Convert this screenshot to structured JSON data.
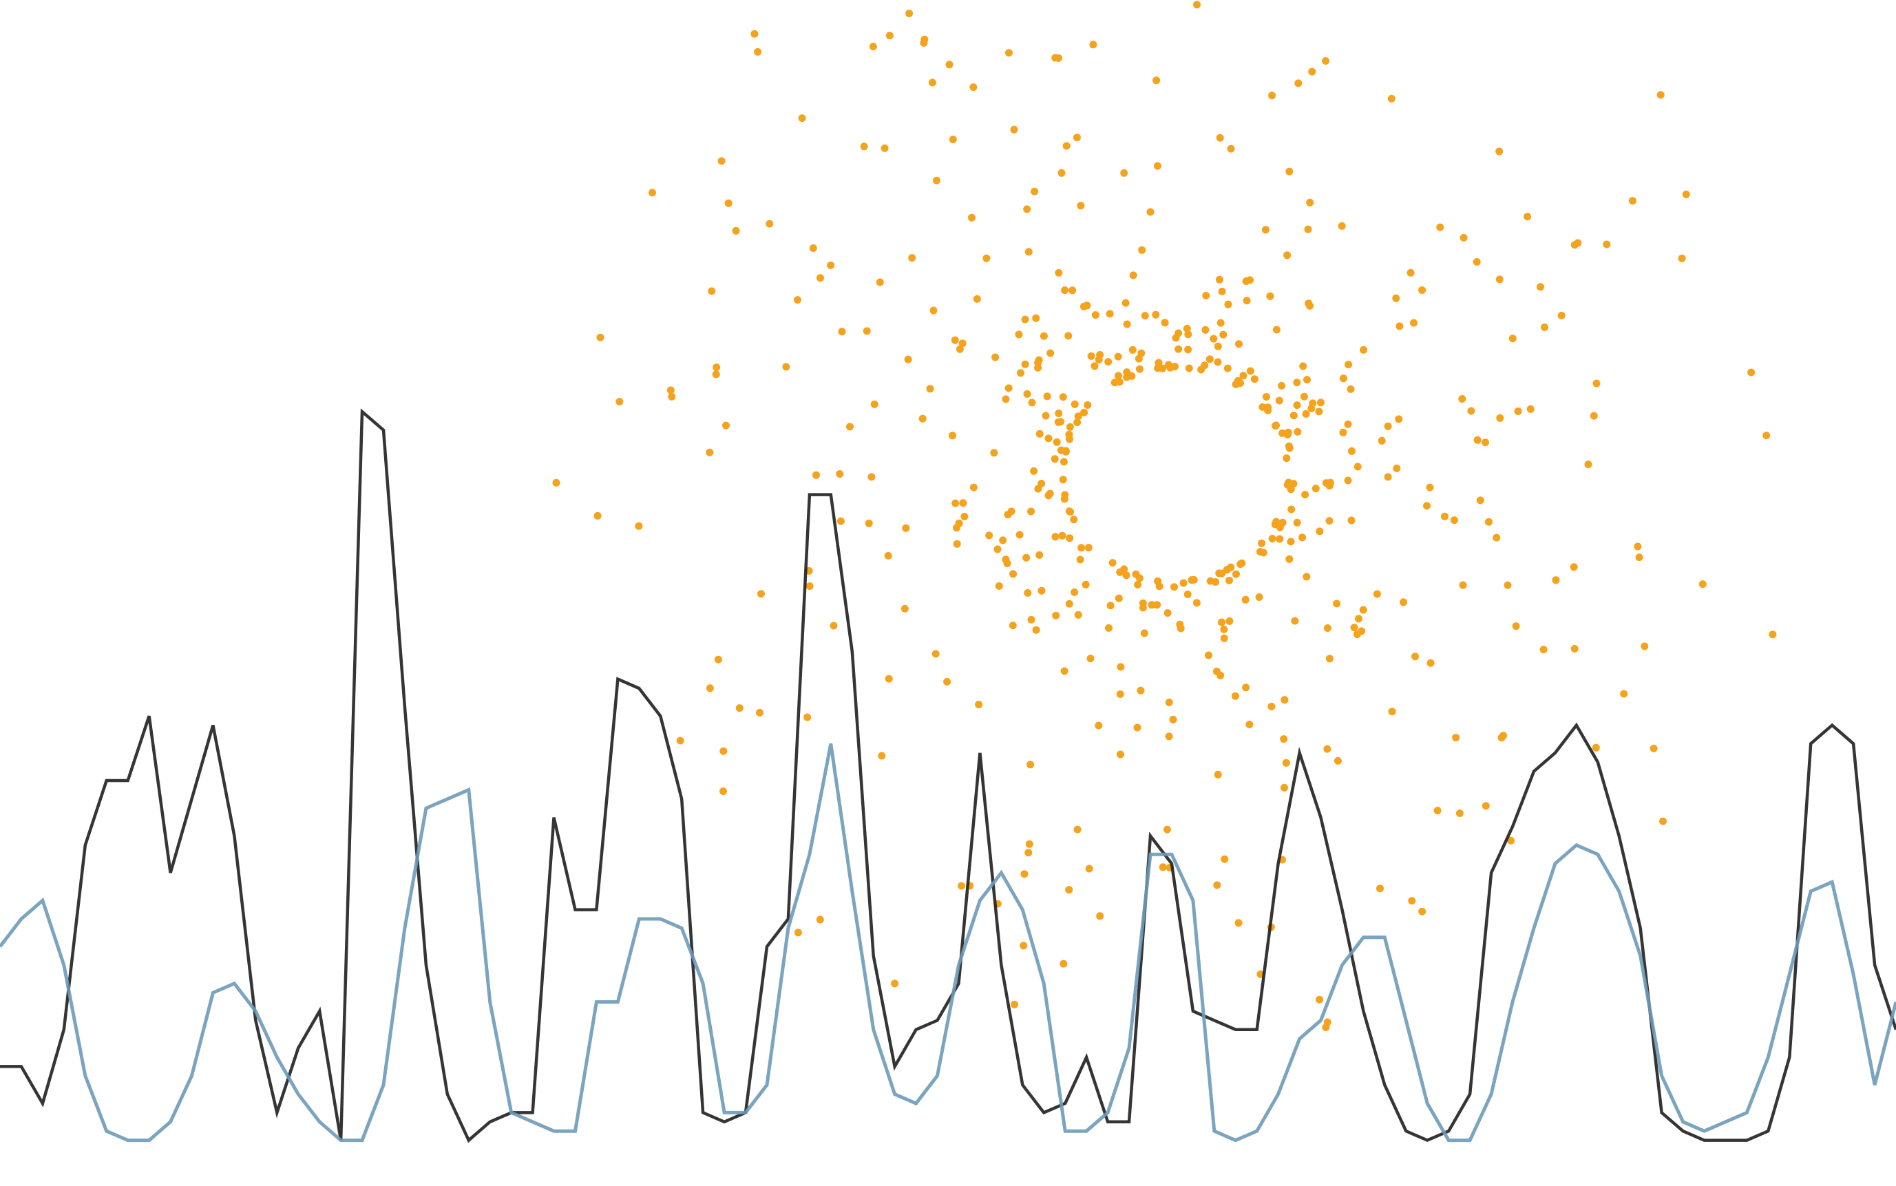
{
  "chart_data": {
    "type": "line",
    "grid": false,
    "legend": "none",
    "axes_visible": false,
    "x": [
      0,
      1,
      2,
      3,
      4,
      5,
      6,
      7,
      8,
      9,
      10,
      11,
      12,
      13,
      14,
      15,
      16,
      17,
      18,
      19,
      20,
      21,
      22,
      23,
      24,
      25,
      26,
      27,
      28,
      29,
      30,
      31,
      32,
      33,
      34,
      35,
      36,
      37,
      38,
      39,
      40,
      41,
      42,
      43,
      44,
      45,
      46,
      47,
      48,
      49,
      50,
      51,
      52,
      53,
      54,
      55,
      56,
      57,
      58,
      59,
      60,
      61,
      62,
      63,
      64,
      65,
      66,
      67,
      68,
      69,
      70,
      71,
      72,
      73,
      74,
      75,
      76,
      77,
      78,
      79,
      80,
      81,
      82,
      83,
      84,
      85,
      86,
      87,
      88,
      89
    ],
    "xlim": [
      0,
      89
    ],
    "ylim": [
      0,
      100
    ],
    "series": [
      {
        "color": "#1f1f1f",
        "values": [
          9,
          9,
          5,
          13,
          33,
          40,
          40,
          47,
          30,
          38,
          46,
          34,
          14,
          4,
          11,
          15,
          1,
          80,
          78,
          48,
          20,
          6,
          1,
          3,
          4,
          4,
          36,
          26,
          26,
          51,
          50,
          47,
          38,
          4,
          3,
          4,
          22,
          25,
          71,
          71,
          54,
          21,
          9,
          13,
          14,
          18,
          43,
          20,
          7,
          4,
          5,
          10,
          3,
          3,
          34,
          31,
          15,
          14,
          13,
          13,
          31,
          43,
          36,
          26,
          15,
          7,
          2,
          1,
          2,
          6,
          30,
          35,
          41,
          43,
          46,
          42,
          34,
          24,
          4,
          2,
          1,
          1,
          1,
          2,
          10,
          44,
          46,
          44,
          20,
          13
        ]
      },
      {
        "color": "#6b9ab8",
        "values": [
          22,
          25,
          27,
          20,
          8,
          2,
          1,
          1,
          3,
          8,
          17,
          18,
          15,
          10,
          6,
          3,
          1,
          1,
          7,
          24,
          37,
          38,
          39,
          16,
          4,
          3,
          2,
          2,
          16,
          16,
          25,
          25,
          24,
          18,
          4,
          4,
          7,
          24,
          32,
          44,
          28,
          13,
          6,
          5,
          8,
          20,
          27,
          30,
          26,
          18,
          2,
          2,
          4,
          11,
          32,
          32,
          27,
          2,
          1,
          2,
          6,
          12,
          14,
          20,
          23,
          23,
          14,
          5,
          1,
          1,
          6,
          16,
          24,
          31,
          33,
          32,
          28,
          21,
          8,
          3,
          2,
          3,
          4,
          10,
          19,
          28,
          29,
          19,
          7,
          16
        ]
      }
    ]
  },
  "scatter_data": {
    "type": "scatter",
    "color": "#f5a21c",
    "center": [
      0.62,
      0.6
    ],
    "inner_radius_data": 0.09,
    "outer_radius_data": 0.23,
    "point_count": 520
  },
  "colors": {
    "background": "#ffffff",
    "line_dark": "#1f1f1f",
    "line_blue": "#6b9ab8",
    "scatter": "#f5a21c"
  }
}
